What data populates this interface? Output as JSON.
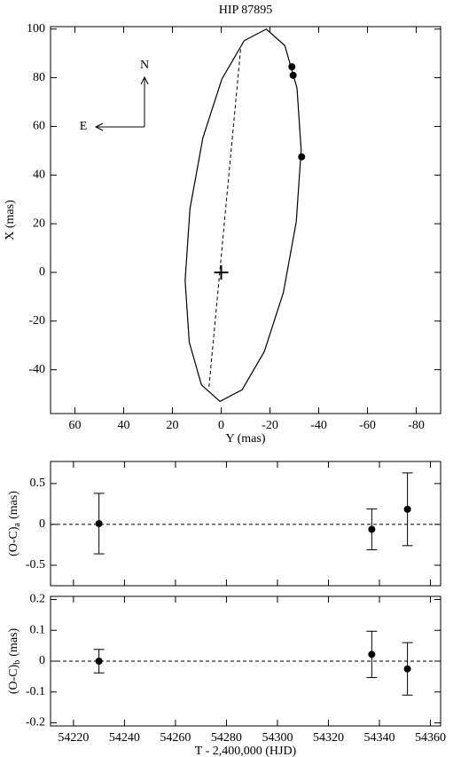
{
  "chart_data": [
    {
      "type": "orbit",
      "title": "HIP 87895",
      "x_label": "Y (mas)",
      "y_label": "X (mas)",
      "xlim": [
        70,
        -90
      ],
      "ylim": [
        -58,
        101
      ],
      "xticks": [
        60,
        40,
        20,
        0,
        -20,
        -40,
        -60,
        -80
      ],
      "yticks": [
        -40,
        -20,
        0,
        20,
        40,
        60,
        80,
        100
      ],
      "orbit": {
        "x": [
          -18.5,
          -9.4,
          -0.3,
          7.5,
          12.8,
          14.8,
          13.1,
          8.1,
          0.5,
          -8.6,
          -17.7,
          -25.5,
          -30.8,
          -32.8,
          -31.1,
          -26.1
        ],
        "y": [
          100.0,
          95.2,
          79.5,
          55.3,
          26.2,
          -3.3,
          -28.7,
          -46.2,
          -53.0,
          -48.2,
          -32.5,
          -8.3,
          20.8,
          50.3,
          75.7,
          93.2
        ]
      },
      "node_line": {
        "x": [
          5,
          -8
        ],
        "y": [
          -47,
          92
        ]
      },
      "center": {
        "x": 0,
        "y": 0
      },
      "points": {
        "x": [
          -29,
          -29.5,
          -33
        ],
        "y": [
          84.5,
          81,
          47.5
        ]
      },
      "compass": {
        "north": "N",
        "east": "E"
      }
    },
    {
      "type": "errorbar",
      "y_label": "(O-C)",
      "y_label_subscript": "a",
      "y_label_unit": "(mas)",
      "xlim": [
        54211,
        54364
      ],
      "ylim": [
        -0.75,
        0.77
      ],
      "xticks": [
        54220,
        54240,
        54260,
        54280,
        54300,
        54320,
        54340,
        54360
      ],
      "yticks": [
        -0.5,
        0,
        0.5
      ],
      "x": [
        54230,
        54337,
        54351
      ],
      "values": [
        0.01,
        -0.06,
        0.185
      ],
      "errors": [
        0.37,
        0.25,
        0.445
      ]
    },
    {
      "type": "errorbar",
      "x_label": "T - 2,400,000 (HJD)",
      "y_label": "(O-C)",
      "y_label_subscript": "b",
      "y_label_unit": "(mas)",
      "xlim": [
        54211,
        54364
      ],
      "ylim": [
        -0.21,
        0.21
      ],
      "xticks": [
        54220,
        54240,
        54260,
        54280,
        54300,
        54320,
        54340,
        54360
      ],
      "yticks": [
        -0.2,
        -0.1,
        0,
        0.1,
        0.2
      ],
      "x": [
        54230,
        54337,
        54351
      ],
      "values": [
        0.0,
        0.022,
        -0.025
      ],
      "errors": [
        0.038,
        0.075,
        0.085
      ]
    }
  ]
}
